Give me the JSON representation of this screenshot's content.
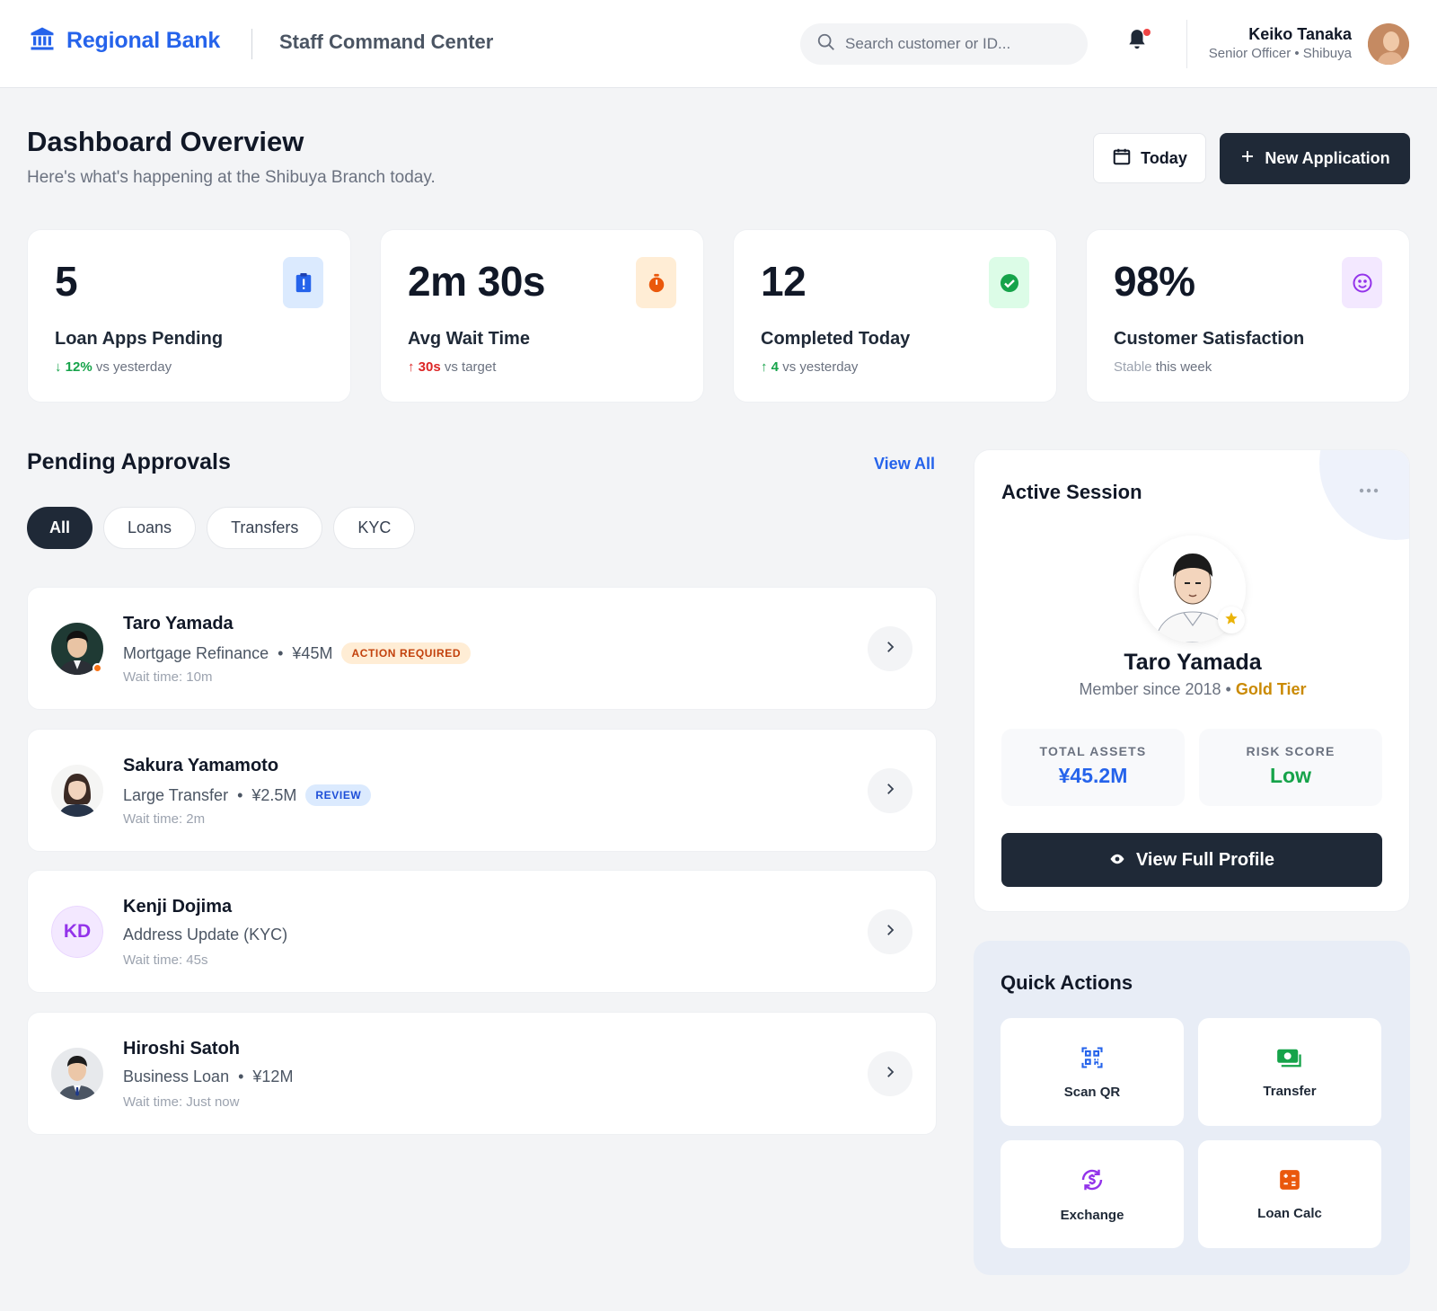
{
  "header": {
    "brand": "Regional Bank",
    "app_title": "Staff Command Center",
    "search_placeholder": "Search customer or ID...",
    "user": {
      "name": "Keiko Tanaka",
      "role": "Senior Officer • Shibuya"
    },
    "has_notification": true
  },
  "page": {
    "title": "Dashboard Overview",
    "subtitle": "Here's what's happening at the Shibuya Branch today.",
    "today_button": "Today",
    "new_button": "New Application"
  },
  "stats": [
    {
      "value": "5",
      "label": "Loan Apps Pending",
      "delta": "12%",
      "delta_dir": "down",
      "delta_color": "#16a34a",
      "rest": "vs yesterday",
      "icon": "clipboard-alert-icon",
      "icon_bg": "#dbeafe",
      "icon_color": "#2563eb"
    },
    {
      "value": "2m 30s",
      "label": "Avg Wait Time",
      "delta": "30s",
      "delta_dir": "up",
      "delta_color": "#dc2626",
      "rest": "vs target",
      "icon": "stopwatch-icon",
      "icon_bg": "#ffedd5",
      "icon_color": "#ea580c"
    },
    {
      "value": "12",
      "label": "Completed Today",
      "delta": "4",
      "delta_dir": "up",
      "delta_color": "#16a34a",
      "rest": "vs yesterday",
      "icon": "check-circle-icon",
      "icon_bg": "#dcfce7",
      "icon_color": "#16a34a"
    },
    {
      "value": "98%",
      "label": "Customer Satisfaction",
      "delta": "Stable",
      "delta_dir": "none",
      "delta_color": "#9ca3af",
      "rest": "this week",
      "icon": "smile-icon",
      "icon_bg": "#f3e8ff",
      "icon_color": "#9333ea"
    }
  ],
  "approvals": {
    "title": "Pending Approvals",
    "view_all": "View All",
    "filters": [
      "All",
      "Loans",
      "Transfers",
      "KYC"
    ],
    "active_filter": "All",
    "items": [
      {
        "name": "Taro Yamada",
        "type": "Mortgage Refinance",
        "amount": "¥45M",
        "badge": "ACTION REQUIRED",
        "badge_style": "orange",
        "wait": "Wait time: 10m"
      },
      {
        "name": "Sakura Yamamoto",
        "type": "Large Transfer",
        "amount": "¥2.5M",
        "badge": "REVIEW",
        "badge_style": "blue",
        "wait": "Wait time: 2m"
      },
      {
        "name": "Kenji Dojima",
        "type": "Address Update (KYC)",
        "amount": "",
        "badge": "",
        "initials": "KD",
        "wait": "Wait time: 45s"
      },
      {
        "name": "Hiroshi Satoh",
        "type": "Business Loan",
        "amount": "¥12M",
        "badge": "",
        "wait": "Wait time: Just now"
      }
    ]
  },
  "session": {
    "title": "Active Session",
    "name": "Taro Yamada",
    "member_since": "Member since 2018",
    "tier": "Gold Tier",
    "assets_label": "TOTAL ASSETS",
    "assets_value": "¥45.2M",
    "risk_label": "RISK SCORE",
    "risk_value": "Low",
    "button": "View Full Profile"
  },
  "quick_actions": {
    "title": "Quick Actions",
    "items": [
      {
        "label": "Scan QR",
        "icon": "qr-scan-icon",
        "color": "#2563eb"
      },
      {
        "label": "Transfer",
        "icon": "cash-icon",
        "color": "#16a34a"
      },
      {
        "label": "Exchange",
        "icon": "exchange-icon",
        "color": "#9333ea"
      },
      {
        "label": "Loan Calc",
        "icon": "calculator-icon",
        "color": "#ea580c"
      }
    ]
  }
}
